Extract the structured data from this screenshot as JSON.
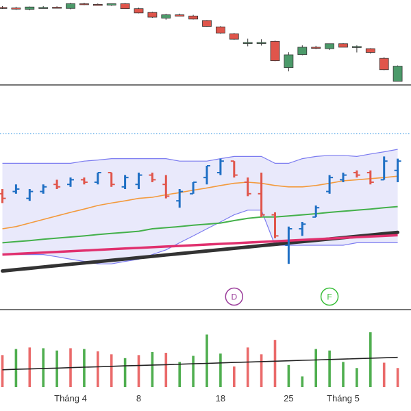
{
  "colors": {
    "up": "#4c9a6a",
    "down": "#e0554b",
    "ohlc_up": "#1f6fc4",
    "ohlc_down": "#e0554b",
    "band": "#7b7bf0",
    "band_fill": "#e9e9fb",
    "ma_short": "#f39a3c",
    "ma_mid": "#43b04a",
    "ma_long": "#e0306e",
    "ma_trend": "#333333",
    "vol_up": "#4fae4f",
    "vol_down": "#ea6a6a",
    "vol_ma": "#222222",
    "ref_line": "#4fa3e8",
    "marker_d": "#9b3d9b",
    "marker_f": "#3cbf3c",
    "divider": "#222222"
  },
  "x_axis": {
    "ticks": [
      {
        "label": "Tháng 4",
        "index": 5
      },
      {
        "label": "8",
        "index": 10
      },
      {
        "label": "18",
        "index": 16
      },
      {
        "label": "25",
        "index": 21
      },
      {
        "label": "Tháng 5",
        "index": 25
      }
    ]
  },
  "markers": [
    {
      "label": "D",
      "index": 17,
      "kind": "marker_d"
    },
    {
      "label": "F",
      "index": 24,
      "kind": "marker_f"
    }
  ],
  "chart_data": [
    {
      "type": "candlestick",
      "panel": "price",
      "ylim": [
        72,
        105
      ],
      "series": [
        {
          "values": [
            {
              "o": 103.0,
              "h": 103.6,
              "l": 102.4,
              "c": 102.9
            },
            {
              "o": 102.8,
              "h": 103.3,
              "l": 102.0,
              "c": 102.3
            },
            {
              "o": 102.2,
              "h": 103.4,
              "l": 101.8,
              "c": 103.2
            },
            {
              "o": 103.0,
              "h": 103.6,
              "l": 102.6,
              "c": 103.0
            },
            {
              "o": 103.1,
              "h": 103.5,
              "l": 102.7,
              "c": 102.8
            },
            {
              "o": 102.6,
              "h": 105.0,
              "l": 102.2,
              "c": 104.6
            },
            {
              "o": 104.6,
              "h": 105.0,
              "l": 104.0,
              "c": 104.3
            },
            {
              "o": 104.3,
              "h": 104.7,
              "l": 103.9,
              "c": 104.1
            },
            {
              "o": 104.0,
              "h": 104.6,
              "l": 103.7,
              "c": 104.6
            },
            {
              "o": 104.6,
              "h": 104.9,
              "l": 102.5,
              "c": 102.5
            },
            {
              "o": 102.5,
              "h": 102.9,
              "l": 100.5,
              "c": 100.7
            },
            {
              "o": 100.9,
              "h": 101.2,
              "l": 98.6,
              "c": 98.9
            },
            {
              "o": 98.5,
              "h": 100.3,
              "l": 97.8,
              "c": 99.9
            },
            {
              "o": 99.9,
              "h": 100.4,
              "l": 99.2,
              "c": 99.3
            },
            {
              "o": 99.4,
              "h": 99.9,
              "l": 97.9,
              "c": 98.1
            },
            {
              "o": 97.5,
              "h": 97.7,
              "l": 94.8,
              "c": 95.0
            },
            {
              "o": 94.8,
              "h": 95.1,
              "l": 91.9,
              "c": 92.2
            },
            {
              "o": 91.9,
              "h": 92.2,
              "l": 89.4,
              "c": 89.6
            },
            {
              "o": 88.2,
              "h": 89.8,
              "l": 86.6,
              "c": 88.2
            },
            {
              "o": 88.1,
              "h": 89.6,
              "l": 86.9,
              "c": 88.2
            },
            {
              "o": 88.7,
              "h": 89.0,
              "l": 80.3,
              "c": 80.5
            },
            {
              "o": 77.6,
              "h": 84.1,
              "l": 76.0,
              "c": 83.0
            },
            {
              "o": 83.1,
              "h": 87.0,
              "l": 82.8,
              "c": 86.2
            },
            {
              "o": 86.2,
              "h": 86.8,
              "l": 85.4,
              "c": 85.7
            },
            {
              "o": 85.6,
              "h": 87.7,
              "l": 85.0,
              "c": 87.7
            },
            {
              "o": 87.7,
              "h": 87.9,
              "l": 86.4,
              "c": 86.2
            },
            {
              "o": 86.2,
              "h": 87.0,
              "l": 84.0,
              "c": 86.5
            },
            {
              "o": 85.6,
              "h": 85.8,
              "l": 83.5,
              "c": 84.0
            },
            {
              "o": 81.5,
              "h": 82.0,
              "l": 76.5,
              "c": 76.7
            },
            {
              "o": 71.8,
              "h": 78.5,
              "l": 71.8,
              "c": 78.2
            }
          ]
        }
      ]
    },
    {
      "type": "ohlc",
      "panel": "indicator",
      "ylim": [
        0,
        100
      ],
      "reference_line": 78.7,
      "series": [
        {
          "name": "bars",
          "values": [
            {
              "o": 51.6,
              "h": 53.7,
              "l": 47.4,
              "c": 49.5
            },
            {
              "o": 52.6,
              "h": 55.8,
              "l": 51.6,
              "c": 53.7
            },
            {
              "o": 49.5,
              "h": 53.7,
              "l": 48.4,
              "c": 52.6
            },
            {
              "o": 52.6,
              "h": 55.8,
              "l": 51.6,
              "c": 54.7
            },
            {
              "o": 55.8,
              "h": 57.9,
              "l": 53.7,
              "c": 54.7
            },
            {
              "o": 55.8,
              "h": 58.9,
              "l": 54.7,
              "c": 57.9
            },
            {
              "o": 57.9,
              "h": 58.9,
              "l": 55.8,
              "c": 56.8
            },
            {
              "o": 56.8,
              "h": 61.1,
              "l": 55.8,
              "c": 61.1
            },
            {
              "o": 61.1,
              "h": 61.1,
              "l": 54.7,
              "c": 55.8
            },
            {
              "o": 54.7,
              "h": 60.0,
              "l": 53.7,
              "c": 58.9
            },
            {
              "o": 55.8,
              "h": 61.1,
              "l": 53.7,
              "c": 60.0
            },
            {
              "o": 60.0,
              "h": 61.1,
              "l": 56.8,
              "c": 57.9
            },
            {
              "o": 55.8,
              "h": 60.0,
              "l": 49.5,
              "c": 50.5
            },
            {
              "o": 48.4,
              "h": 53.7,
              "l": 45.3,
              "c": 52.6
            },
            {
              "o": 51.6,
              "h": 56.8,
              "l": 51.6,
              "c": 56.8
            },
            {
              "o": 58.9,
              "h": 64.2,
              "l": 55.8,
              "c": 64.2
            },
            {
              "o": 61.1,
              "h": 67.4,
              "l": 60.0,
              "c": 66.3
            },
            {
              "o": 66.3,
              "h": 66.3,
              "l": 58.9,
              "c": 60.0
            },
            {
              "o": 56.8,
              "h": 58.9,
              "l": 50.5,
              "c": 51.6
            },
            {
              "o": 51.6,
              "h": 61.1,
              "l": 41.1,
              "c": 42.1
            },
            {
              "o": 42.1,
              "h": 43.2,
              "l": 31.6,
              "c": 32.6
            },
            {
              "o": 28.4,
              "h": 36.8,
              "l": 20.0,
              "c": 35.8
            },
            {
              "o": 35.8,
              "h": 38.9,
              "l": 32.6,
              "c": 37.9
            },
            {
              "o": 41.1,
              "h": 46.3,
              "l": 41.1,
              "c": 45.3
            },
            {
              "o": 52.6,
              "h": 60.0,
              "l": 51.6,
              "c": 58.9
            },
            {
              "o": 57.9,
              "h": 61.1,
              "l": 56.8,
              "c": 60.0
            },
            {
              "o": 61.1,
              "h": 62.1,
              "l": 58.9,
              "c": 60.0
            },
            {
              "o": 61.1,
              "h": 62.1,
              "l": 55.8,
              "c": 56.8
            },
            {
              "o": 57.9,
              "h": 68.4,
              "l": 57.9,
              "c": 66.3
            },
            {
              "o": 62.1,
              "h": 67.4,
              "l": 56.8,
              "c": 66.3
            }
          ]
        },
        {
          "name": "upper",
          "values": [
            65.3,
            65.3,
            65.3,
            65.3,
            65.3,
            65.3,
            66.3,
            66.8,
            67.4,
            67.4,
            67.4,
            67.4,
            67.4,
            66.3,
            66.3,
            66.3,
            67.4,
            68.4,
            68.4,
            68.4,
            65.3,
            65.3,
            67.4,
            68.4,
            68.9,
            68.9,
            68.4,
            69.5,
            70.5,
            71.6
          ]
        },
        {
          "name": "lower",
          "values": [
            24.2,
            24.2,
            24.2,
            24.2,
            23.2,
            22.1,
            21.1,
            20.0,
            20.0,
            21.1,
            22.1,
            24.2,
            26.3,
            29.5,
            32.6,
            35.8,
            38.9,
            42.1,
            44.2,
            44.2,
            28.4,
            28.4,
            28.4,
            28.4,
            28.4,
            28.4,
            29.5,
            29.5,
            29.5,
            29.5
          ]
        },
        {
          "name": "ma_short",
          "values": [
            35.8,
            36.8,
            38.4,
            40.0,
            41.6,
            43.2,
            44.7,
            46.3,
            47.4,
            48.4,
            49.5,
            50.0,
            51.1,
            52.1,
            53.2,
            54.2,
            55.3,
            56.3,
            56.8,
            56.3,
            55.3,
            54.7,
            54.7,
            55.3,
            56.3,
            57.4,
            57.9,
            58.4,
            58.9,
            59.5
          ]
        },
        {
          "name": "ma_mid",
          "values": [
            29.5,
            30.0,
            30.5,
            31.1,
            31.6,
            32.1,
            32.6,
            33.2,
            33.7,
            34.2,
            34.7,
            35.8,
            36.3,
            36.8,
            37.4,
            37.9,
            38.4,
            39.5,
            40.5,
            41.1,
            41.1,
            41.6,
            42.1,
            42.6,
            43.2,
            43.7,
            44.2,
            44.7,
            45.3,
            45.8
          ]
        },
        {
          "name": "ma_long",
          "values": [
            24.2,
            24.5,
            24.8,
            25.1,
            25.4,
            25.7,
            26.0,
            26.3,
            26.6,
            26.9,
            27.2,
            27.5,
            27.8,
            28.1,
            28.4,
            28.7,
            29.0,
            29.3,
            29.6,
            29.9,
            30.2,
            30.5,
            30.8,
            31.1,
            31.4,
            31.7,
            32.0,
            32.3,
            32.6,
            32.9
          ]
        },
        {
          "name": "ma_trend",
          "values": [
            16.8,
            17.4,
            18.0,
            18.6,
            19.2,
            19.8,
            20.4,
            21.0,
            21.6,
            22.2,
            22.8,
            23.4,
            24.0,
            24.6,
            25.2,
            25.8,
            26.4,
            27.0,
            27.6,
            28.2,
            28.8,
            29.4,
            30.0,
            30.6,
            31.2,
            31.8,
            32.4,
            33.0,
            33.6,
            34.2
          ]
        }
      ]
    },
    {
      "type": "bar",
      "panel": "volume",
      "ylim": [
        0,
        100
      ],
      "series": [
        {
          "name": "volume",
          "values": [
            42,
            50,
            52,
            51,
            48,
            51,
            50,
            47,
            43,
            38,
            42,
            46,
            45,
            33,
            41,
            69,
            44,
            27,
            52,
            43,
            62,
            29,
            14,
            50,
            48,
            33,
            25,
            72,
            32,
            25
          ]
        },
        {
          "name": "volume_dir",
          "values": [
            "d",
            "g",
            "d",
            "g",
            "g",
            "d",
            "g",
            "d",
            "d",
            "g",
            "d",
            "g",
            "d",
            "g",
            "g",
            "g",
            "g",
            "d",
            "d",
            "d",
            "d",
            "g",
            "g",
            "g",
            "g",
            "g",
            "g",
            "g",
            "d",
            "d"
          ]
        },
        {
          "name": "volume_ma",
          "values": [
            22.7,
            23.3,
            23.8,
            24.4,
            24.9,
            25.5,
            26.1,
            26.6,
            27.2,
            27.8,
            28.3,
            28.9,
            29.4,
            30.0,
            30.6,
            31.1,
            31.7,
            32.3,
            32.8,
            33.4,
            34.0,
            34.5,
            35.1,
            35.6,
            36.2,
            36.8,
            37.3,
            37.9,
            38.5,
            39.0
          ]
        }
      ]
    }
  ]
}
